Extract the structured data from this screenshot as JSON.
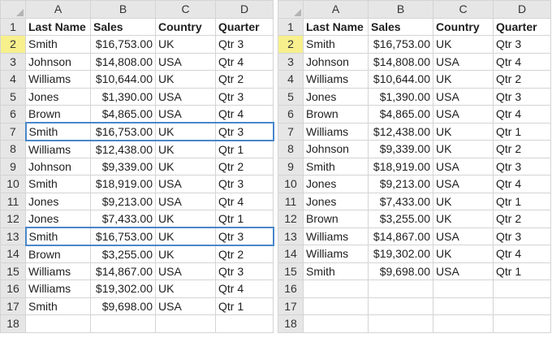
{
  "columns": [
    "A",
    "B",
    "C",
    "D"
  ],
  "left_sheet": {
    "rows": [
      {
        "n": "1",
        "a": "Last Name",
        "b": "Sales",
        "c": "Country",
        "d": "Quarter",
        "header": true
      },
      {
        "n": "2",
        "a": "Smith",
        "b": "$16,753.00",
        "c": "UK",
        "d": "Qtr 3",
        "active": true
      },
      {
        "n": "3",
        "a": "Johnson",
        "b": "$14,808.00",
        "c": "USA",
        "d": "Qtr 4"
      },
      {
        "n": "4",
        "a": "Williams",
        "b": "$10,644.00",
        "c": "UK",
        "d": "Qtr 2"
      },
      {
        "n": "5",
        "a": "Jones",
        "b": "$1,390.00",
        "c": "USA",
        "d": "Qtr 3"
      },
      {
        "n": "6",
        "a": "Brown",
        "b": "$4,865.00",
        "c": "USA",
        "d": "Qtr 4"
      },
      {
        "n": "7",
        "a": "Smith",
        "b": "$16,753.00",
        "c": "UK",
        "d": "Qtr 3",
        "selected": true
      },
      {
        "n": "8",
        "a": "Williams",
        "b": "$12,438.00",
        "c": "UK",
        "d": "Qtr 1"
      },
      {
        "n": "9",
        "a": "Johnson",
        "b": "$9,339.00",
        "c": "UK",
        "d": "Qtr 2"
      },
      {
        "n": "10",
        "a": "Smith",
        "b": "$18,919.00",
        "c": "USA",
        "d": "Qtr 3"
      },
      {
        "n": "11",
        "a": "Jones",
        "b": "$9,213.00",
        "c": "USA",
        "d": "Qtr 4"
      },
      {
        "n": "12",
        "a": "Jones",
        "b": "$7,433.00",
        "c": "UK",
        "d": "Qtr 1"
      },
      {
        "n": "13",
        "a": "Smith",
        "b": "$16,753.00",
        "c": "UK",
        "d": "Qtr 3",
        "selected": true
      },
      {
        "n": "14",
        "a": "Brown",
        "b": "$3,255.00",
        "c": "UK",
        "d": "Qtr 2"
      },
      {
        "n": "15",
        "a": "Williams",
        "b": "$14,867.00",
        "c": "USA",
        "d": "Qtr 3"
      },
      {
        "n": "16",
        "a": "Williams",
        "b": "$19,302.00",
        "c": "UK",
        "d": "Qtr 4"
      },
      {
        "n": "17",
        "a": "Smith",
        "b": "$9,698.00",
        "c": "USA",
        "d": "Qtr 1"
      },
      {
        "n": "18",
        "a": "",
        "b": "",
        "c": "",
        "d": ""
      }
    ]
  },
  "right_sheet": {
    "rows": [
      {
        "n": "1",
        "a": "Last Name",
        "b": "Sales",
        "c": "Country",
        "d": "Quarter",
        "header": true
      },
      {
        "n": "2",
        "a": "Smith",
        "b": "$16,753.00",
        "c": "UK",
        "d": "Qtr 3",
        "active": true
      },
      {
        "n": "3",
        "a": "Johnson",
        "b": "$14,808.00",
        "c": "USA",
        "d": "Qtr 4"
      },
      {
        "n": "4",
        "a": "Williams",
        "b": "$10,644.00",
        "c": "UK",
        "d": "Qtr 2"
      },
      {
        "n": "5",
        "a": "Jones",
        "b": "$1,390.00",
        "c": "USA",
        "d": "Qtr 3"
      },
      {
        "n": "6",
        "a": "Brown",
        "b": "$4,865.00",
        "c": "USA",
        "d": "Qtr 4"
      },
      {
        "n": "7",
        "a": "Williams",
        "b": "$12,438.00",
        "c": "UK",
        "d": "Qtr 1"
      },
      {
        "n": "8",
        "a": "Johnson",
        "b": "$9,339.00",
        "c": "UK",
        "d": "Qtr 2"
      },
      {
        "n": "9",
        "a": "Smith",
        "b": "$18,919.00",
        "c": "USA",
        "d": "Qtr 3"
      },
      {
        "n": "10",
        "a": "Jones",
        "b": "$9,213.00",
        "c": "USA",
        "d": "Qtr 4"
      },
      {
        "n": "11",
        "a": "Jones",
        "b": "$7,433.00",
        "c": "UK",
        "d": "Qtr 1"
      },
      {
        "n": "12",
        "a": "Brown",
        "b": "$3,255.00",
        "c": "UK",
        "d": "Qtr 2"
      },
      {
        "n": "13",
        "a": "Williams",
        "b": "$14,867.00",
        "c": "USA",
        "d": "Qtr 3"
      },
      {
        "n": "14",
        "a": "Williams",
        "b": "$19,302.00",
        "c": "UK",
        "d": "Qtr 4"
      },
      {
        "n": "15",
        "a": "Smith",
        "b": "$9,698.00",
        "c": "USA",
        "d": "Qtr 1"
      },
      {
        "n": "16",
        "a": "",
        "b": "",
        "c": "",
        "d": ""
      },
      {
        "n": "17",
        "a": "",
        "b": "",
        "c": "",
        "d": ""
      },
      {
        "n": "18",
        "a": "",
        "b": "",
        "c": "",
        "d": ""
      }
    ]
  },
  "colors": {
    "header_bg": "#e6e6e6",
    "active_row_header": "#f7f08c",
    "selection_border": "#4a87c9",
    "gridline": "#d4d4d4"
  }
}
